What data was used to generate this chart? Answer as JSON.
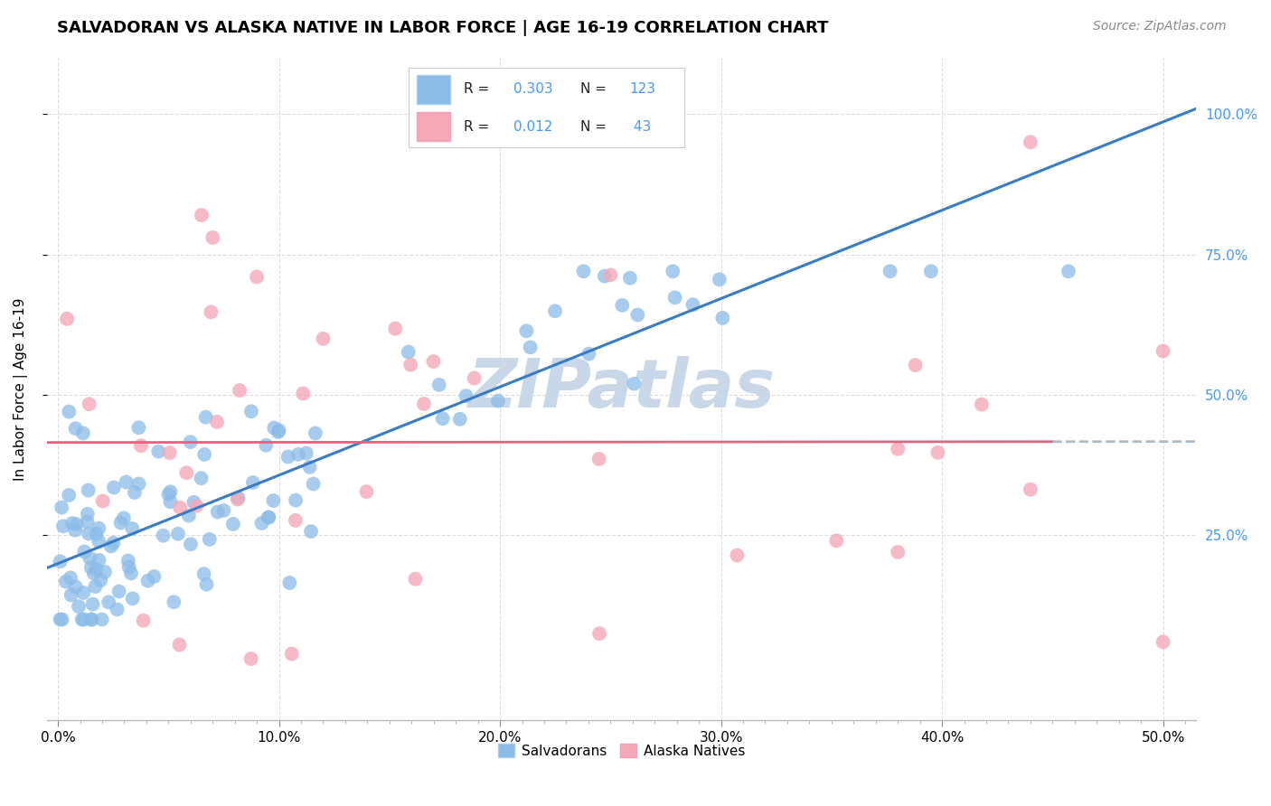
{
  "title": "SALVADORAN VS ALASKA NATIVE IN LABOR FORCE | AGE 16-19 CORRELATION CHART",
  "source": "Source: ZipAtlas.com",
  "xlabel_ticks": [
    "0.0%",
    "",
    "",
    "",
    "",
    "",
    "",
    "",
    "",
    "",
    "10.0%",
    "",
    "",
    "",
    "",
    "",
    "",
    "",
    "",
    "",
    "20.0%",
    "",
    "",
    "",
    "",
    "",
    "",
    "",
    "",
    "",
    "30.0%",
    "",
    "",
    "",
    "",
    "",
    "",
    "",
    "",
    "",
    "40.0%",
    "",
    "",
    "",
    "",
    "",
    "",
    "",
    "",
    "",
    "50.0%"
  ],
  "xlabel_vals_major": [
    0.0,
    0.1,
    0.2,
    0.3,
    0.4,
    0.5
  ],
  "xlabel_labels_major": [
    "0.0%",
    "10.0%",
    "20.0%",
    "30.0%",
    "40.0%",
    "50.0%"
  ],
  "ylabel": "In Labor Force | Age 16-19",
  "ylabel_ticks": [
    "25.0%",
    "50.0%",
    "75.0%",
    "100.0%"
  ],
  "ylabel_vals": [
    0.25,
    0.5,
    0.75,
    1.0
  ],
  "xlim": [
    -0.005,
    0.515
  ],
  "ylim": [
    -0.08,
    1.1
  ],
  "salvadoran_R": "0.303",
  "salvadoran_N": "123",
  "alaska_R": "0.012",
  "alaska_N": "43",
  "salvadoran_color": "#8BBCE8",
  "alaska_color": "#F4A8B8",
  "salvadoran_trend_color": "#3A7CC3",
  "alaska_trend_color": "#E8607A",
  "alaska_trend_dash_color": "#AABBCC",
  "watermark_color": "#C8D8E8",
  "title_fontsize": 13,
  "source_fontsize": 10,
  "label_fontsize": 11,
  "tick_fontsize": 11,
  "right_tick_color": "#4499FF",
  "background_color": "#FFFFFF",
  "grid_color": "#DDDDDD"
}
